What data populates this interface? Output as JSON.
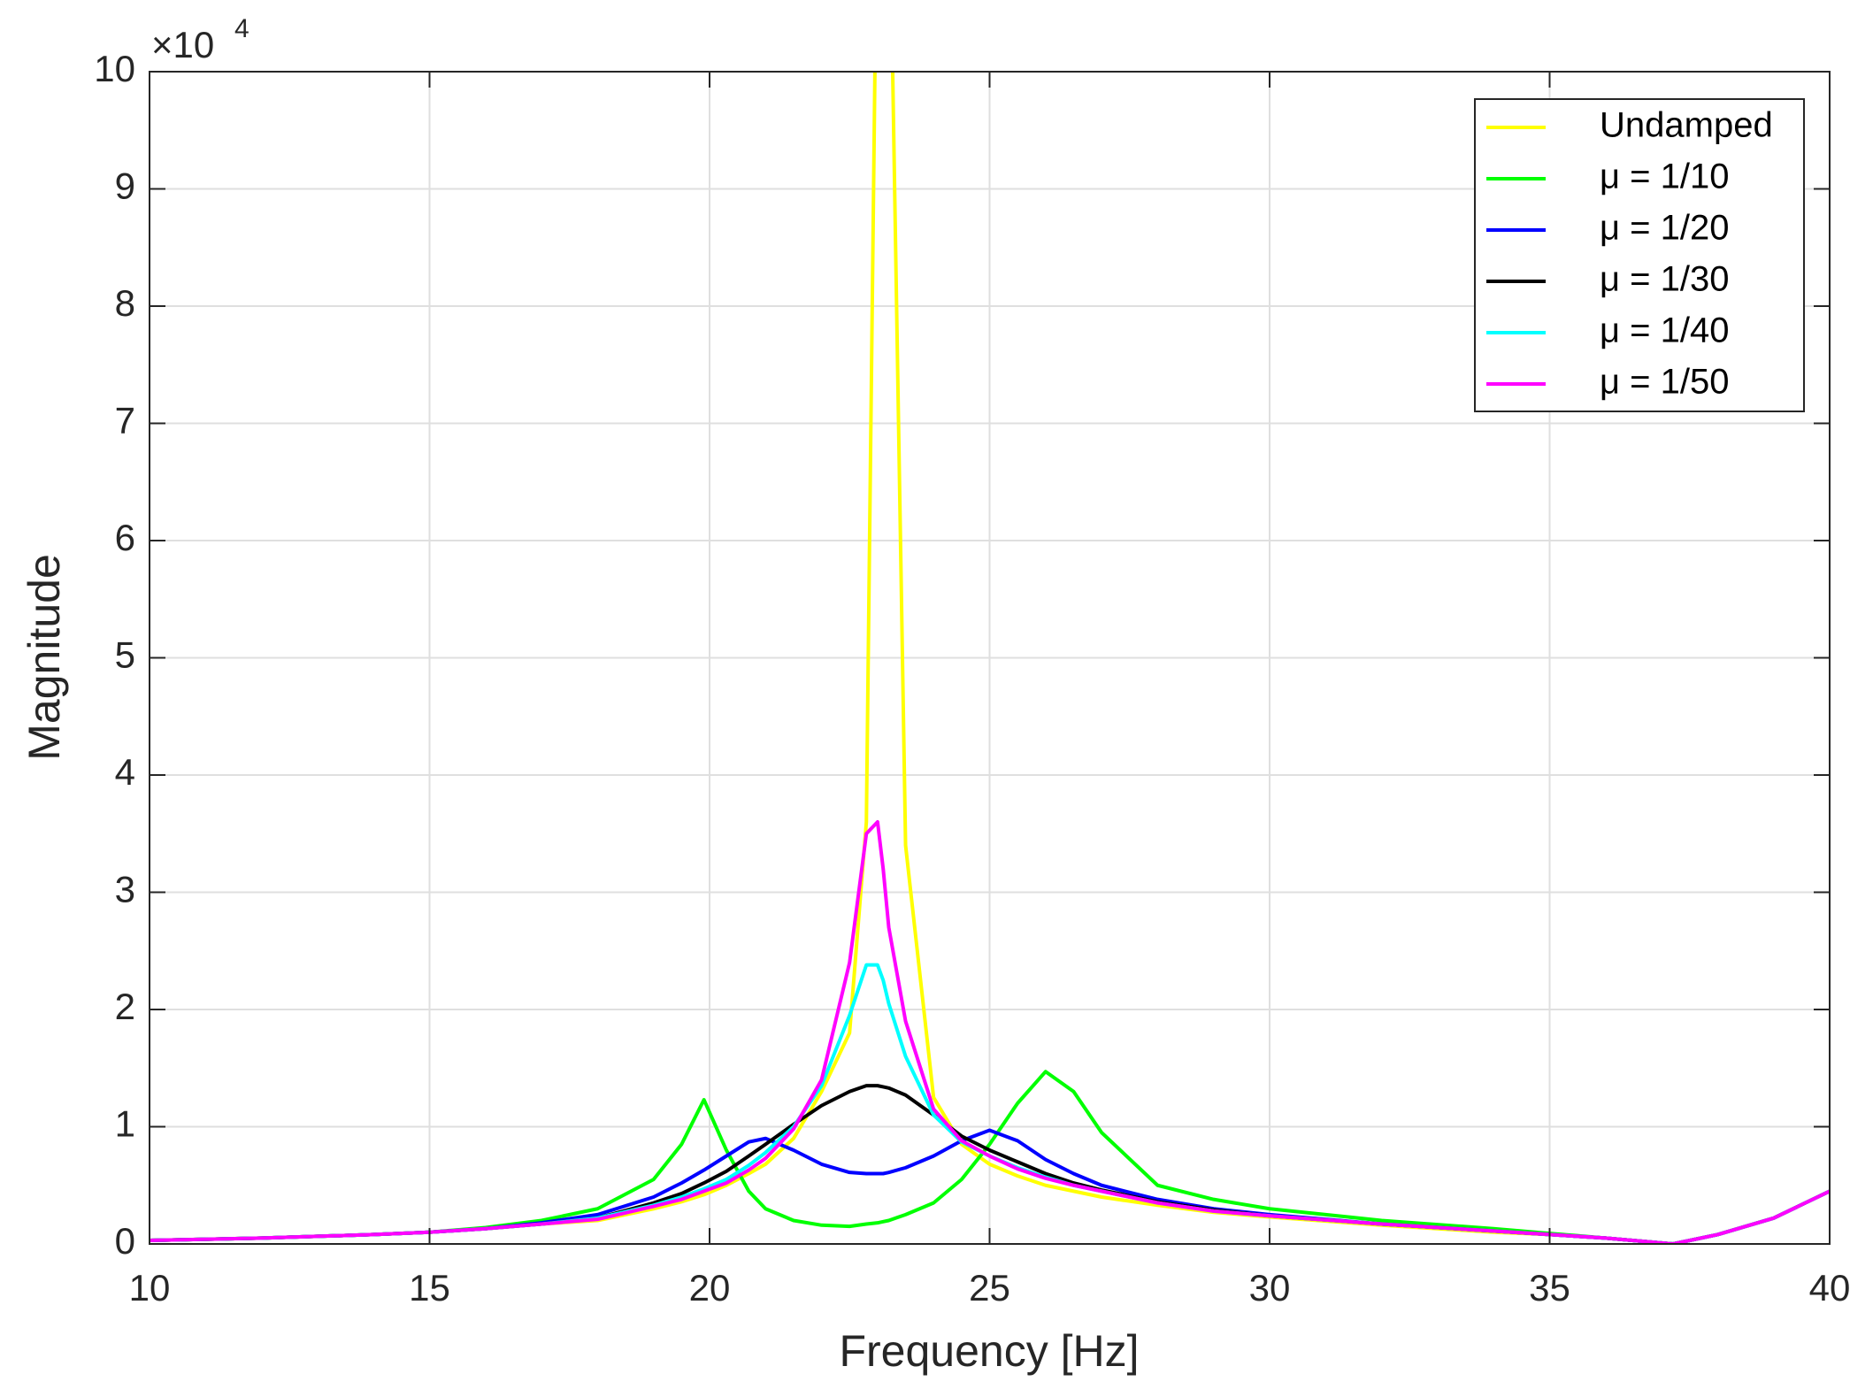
{
  "chart_data": {
    "type": "line",
    "xlabel": "Frequency [Hz]",
    "ylabel": "Magnitude",
    "y_exponent_base": "×10",
    "y_exponent": "4",
    "x": [
      10,
      12,
      14,
      15,
      16,
      17,
      18,
      19,
      19.5,
      19.9,
      20.3,
      20.7,
      21,
      21.5,
      22,
      22.5,
      22.8,
      23,
      23.1,
      23.2,
      23.5,
      24,
      24.5,
      25,
      25.5,
      26,
      26.5,
      27,
      28,
      29,
      30,
      32,
      34,
      35,
      36,
      37.2,
      38,
      39,
      40
    ],
    "series": [
      {
        "name": "Undamped",
        "color": "#ffff00",
        "values": [
          0.03,
          0.05,
          0.08,
          0.1,
          0.13,
          0.17,
          0.2,
          0.3,
          0.36,
          0.42,
          0.5,
          0.6,
          0.68,
          0.9,
          1.3,
          1.8,
          3.6,
          12,
          null,
          12,
          3.4,
          1.25,
          0.85,
          0.68,
          0.58,
          0.5,
          0.45,
          0.4,
          0.33,
          0.27,
          0.23,
          0.16,
          0.1,
          0.08,
          0.05,
          0,
          0.08,
          0.22,
          0.45
        ]
      },
      {
        "name": "μ = 1/10",
        "color": "#00ff00",
        "values": [
          0.03,
          0.05,
          0.08,
          0.1,
          0.14,
          0.2,
          0.3,
          0.55,
          0.85,
          1.23,
          0.8,
          0.45,
          0.3,
          0.2,
          0.16,
          0.15,
          0.17,
          0.18,
          0.19,
          0.2,
          0.25,
          0.35,
          0.55,
          0.85,
          1.2,
          1.47,
          1.3,
          0.95,
          0.5,
          0.38,
          0.3,
          0.2,
          0.13,
          0.09,
          0.05,
          0,
          0.08,
          0.22,
          0.45
        ]
      },
      {
        "name": "μ = 1/20",
        "color": "#0000ff",
        "values": [
          0.03,
          0.05,
          0.08,
          0.1,
          0.13,
          0.18,
          0.25,
          0.4,
          0.52,
          0.63,
          0.75,
          0.87,
          0.9,
          0.8,
          0.68,
          0.61,
          0.6,
          0.6,
          0.6,
          0.61,
          0.65,
          0.75,
          0.88,
          0.97,
          0.88,
          0.72,
          0.6,
          0.5,
          0.38,
          0.3,
          0.25,
          0.17,
          0.11,
          0.08,
          0.05,
          0,
          0.08,
          0.22,
          0.45
        ]
      },
      {
        "name": "μ = 1/30",
        "color": "#000000",
        "values": [
          0.03,
          0.05,
          0.08,
          0.1,
          0.13,
          0.17,
          0.22,
          0.35,
          0.43,
          0.52,
          0.62,
          0.75,
          0.85,
          1.02,
          1.18,
          1.3,
          1.35,
          1.35,
          1.34,
          1.33,
          1.27,
          1.1,
          0.92,
          0.8,
          0.7,
          0.6,
          0.52,
          0.46,
          0.36,
          0.29,
          0.24,
          0.17,
          0.11,
          0.08,
          0.05,
          0,
          0.08,
          0.22,
          0.45
        ]
      },
      {
        "name": "μ = 1/40",
        "color": "#00ffff",
        "values": [
          0.03,
          0.05,
          0.08,
          0.1,
          0.13,
          0.17,
          0.22,
          0.33,
          0.4,
          0.47,
          0.55,
          0.67,
          0.78,
          1.0,
          1.35,
          1.95,
          2.38,
          2.38,
          2.25,
          2.05,
          1.6,
          1.1,
          0.87,
          0.75,
          0.65,
          0.57,
          0.5,
          0.45,
          0.35,
          0.28,
          0.24,
          0.17,
          0.11,
          0.08,
          0.05,
          0,
          0.08,
          0.22,
          0.45
        ]
      },
      {
        "name": "μ = 1/50",
        "color": "#ff00ff",
        "values": [
          0.03,
          0.05,
          0.08,
          0.1,
          0.13,
          0.17,
          0.21,
          0.32,
          0.38,
          0.45,
          0.52,
          0.63,
          0.73,
          0.98,
          1.4,
          2.4,
          3.5,
          3.6,
          3.2,
          2.7,
          1.9,
          1.15,
          0.88,
          0.75,
          0.64,
          0.56,
          0.5,
          0.45,
          0.35,
          0.28,
          0.24,
          0.17,
          0.11,
          0.08,
          0.05,
          0,
          0.08,
          0.22,
          0.45
        ]
      }
    ],
    "xlim": [
      10,
      40
    ],
    "ylim": [
      0,
      10
    ],
    "xticks": [
      10,
      15,
      20,
      25,
      30,
      35,
      40
    ],
    "yticks": [
      0,
      1,
      2,
      3,
      4,
      5,
      6,
      7,
      8,
      9,
      10
    ],
    "grid": true,
    "legend": "upper-right"
  }
}
